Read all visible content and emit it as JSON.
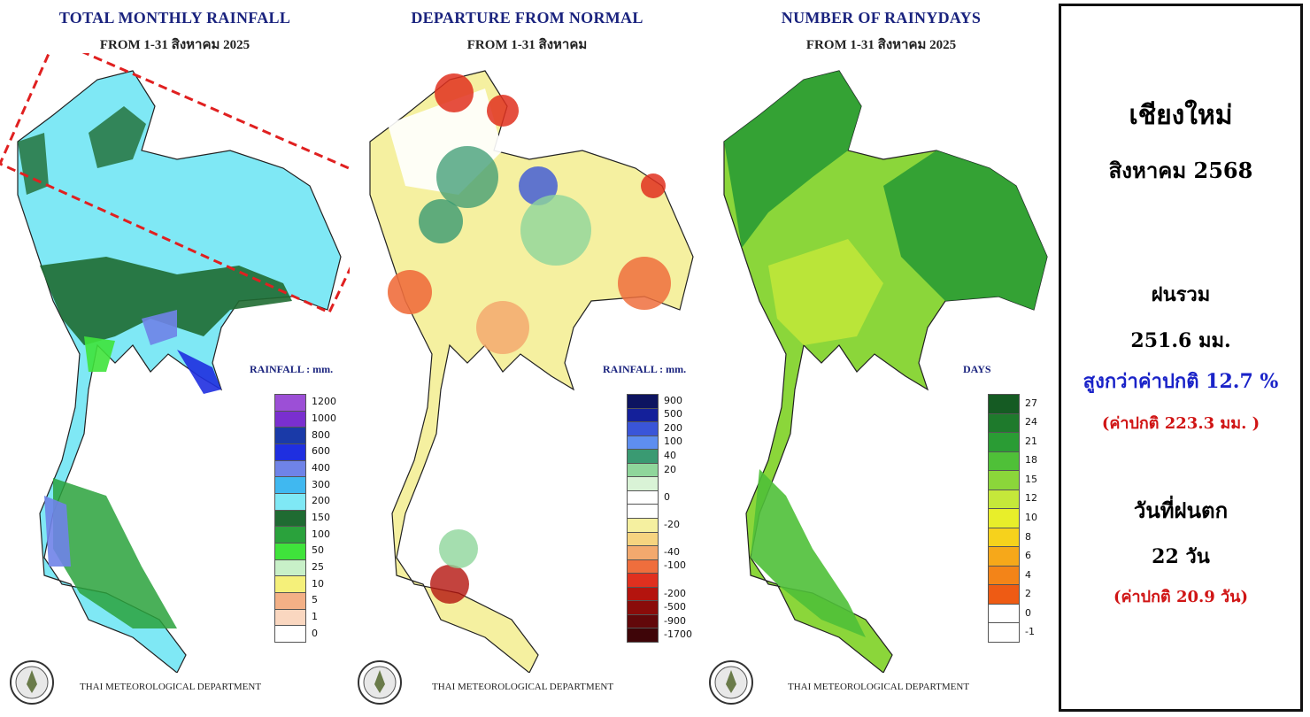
{
  "panels": [
    {
      "title": "TOTAL MONTHLY RAINFALL",
      "subtitle": "FROM 1-31 สิงหาคม 2025",
      "legend_title": "RAINFALL : mm.",
      "legend": [
        {
          "label": "1200",
          "color": "#9c4fd6"
        },
        {
          "label": "1000",
          "color": "#7a2fcf"
        },
        {
          "label": "800",
          "color": "#1a3aa8"
        },
        {
          "label": "600",
          "color": "#1f2fe0"
        },
        {
          "label": "400",
          "color": "#6f83e8"
        },
        {
          "label": "300",
          "color": "#40b8f0"
        },
        {
          "label": "200",
          "color": "#7fe8f5"
        },
        {
          "label": "150",
          "color": "#1f6b32"
        },
        {
          "label": "100",
          "color": "#2aa23c"
        },
        {
          "label": "50",
          "color": "#3fe33b"
        },
        {
          "label": "25",
          "color": "#c8f0c8"
        },
        {
          "label": "10",
          "color": "#f5f07a"
        },
        {
          "label": "5",
          "color": "#f3b086"
        },
        {
          "label": "1",
          "color": "#fad7c0"
        },
        {
          "label": "0",
          "color": "#ffffff"
        }
      ],
      "footer": "THAI METEOROLOGICAL DEPARTMENT"
    },
    {
      "title": "DEPARTURE FROM NORMAL",
      "subtitle": "FROM 1-31 สิงหาคม",
      "legend_title": "RAINFALL : mm.",
      "legend": [
        {
          "label": "900",
          "color": "#0d1460"
        },
        {
          "label": "500",
          "color": "#14209a"
        },
        {
          "label": "200",
          "color": "#3a55d8"
        },
        {
          "label": "100",
          "color": "#5e8ef0"
        },
        {
          "label": "40",
          "color": "#3a9a72"
        },
        {
          "label": "20",
          "color": "#8fd69b"
        },
        {
          "label": "",
          "color": "#d9f3d6"
        },
        {
          "label": "0",
          "color": "#ffffff"
        },
        {
          "label": "",
          "color": "#ffffff"
        },
        {
          "label": "-20",
          "color": "#f5f0a0"
        },
        {
          "label": "",
          "color": "#f6d480"
        },
        {
          "label": "-40",
          "color": "#f3a96e"
        },
        {
          "label": "-100",
          "color": "#ef6e3d"
        },
        {
          "label": "",
          "color": "#e0301f"
        },
        {
          "label": "-200",
          "color": "#b4140e"
        },
        {
          "label": "-500",
          "color": "#8a0c0a"
        },
        {
          "label": "-900",
          "color": "#62080a"
        },
        {
          "label": "-1700",
          "color": "#3e0508"
        }
      ],
      "footer": "THAI METEOROLOGICAL DEPARTMENT"
    },
    {
      "title": "NUMBER OF RAINYDAYS",
      "subtitle": "FROM 1-31 สิงหาคม 2025",
      "legend_title": "DAYS",
      "legend": [
        {
          "label": "27",
          "color": "#155b23"
        },
        {
          "label": "24",
          "color": "#1e7a2c"
        },
        {
          "label": "21",
          "color": "#2a9c34"
        },
        {
          "label": "18",
          "color": "#4fc038"
        },
        {
          "label": "15",
          "color": "#8bd63a"
        },
        {
          "label": "12",
          "color": "#c5e83a"
        },
        {
          "label": "10",
          "color": "#e8ee2a"
        },
        {
          "label": "8",
          "color": "#f6d21c"
        },
        {
          "label": "6",
          "color": "#f6a81a"
        },
        {
          "label": "4",
          "color": "#f38418"
        },
        {
          "label": "2",
          "color": "#ee5b14"
        },
        {
          "label": "0",
          "color": "#ffffff"
        },
        {
          "label": "-1",
          "color": "#ffffff"
        }
      ],
      "footer": "THAI METEOROLOGICAL DEPARTMENT"
    }
  ],
  "info": {
    "province": "เชียงใหม่",
    "month": "สิงหาคม 2568",
    "total_label": "ฝนรวม",
    "total_value": "251.6 มม.",
    "departure": "สูงกว่าค่าปกติ 12.7 %",
    "normal_rain": "(ค่าปกติ 223.3 มม. )",
    "days_label": "วันที่ฝนตก",
    "days_value": "22 วัน",
    "normal_days": "(ค่าปกติ 20.9 วัน)"
  },
  "colors": {
    "highlight_box": "#e02020",
    "title_color": "#1a237e",
    "departure_text": "#1a23c8",
    "normal_text": "#d01515"
  }
}
